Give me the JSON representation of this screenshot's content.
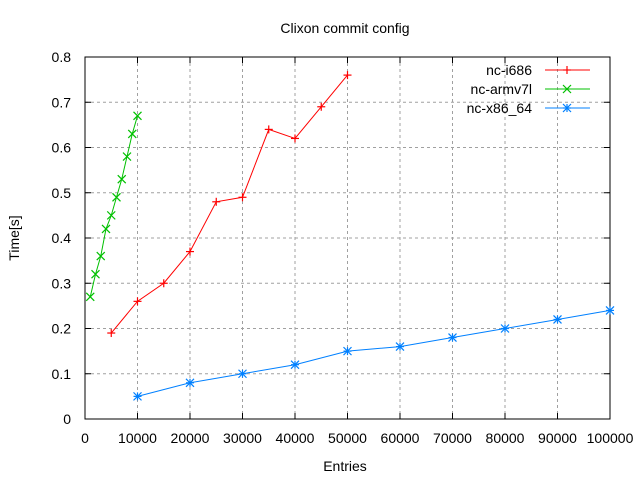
{
  "chart_data": {
    "type": "line",
    "title": "Clixon commit config",
    "xlabel": "Entries",
    "ylabel": "Time[s]",
    "xlim": [
      0,
      100000
    ],
    "ylim": [
      0,
      0.8
    ],
    "xticks": [
      0,
      10000,
      20000,
      30000,
      40000,
      50000,
      60000,
      70000,
      80000,
      90000,
      100000
    ],
    "yticks": [
      0,
      0.1,
      0.2,
      0.3,
      0.4,
      0.5,
      0.6,
      0.7,
      0.8
    ],
    "grid": true,
    "legend_position": "top-right",
    "series": [
      {
        "name": "nc-i686",
        "color": "#ff0000",
        "marker": "plus",
        "x": [
          5000,
          10000,
          15000,
          20000,
          25000,
          30000,
          35000,
          40000,
          45000,
          50000
        ],
        "y": [
          0.19,
          0.26,
          0.3,
          0.37,
          0.48,
          0.49,
          0.64,
          0.62,
          0.69,
          0.76
        ]
      },
      {
        "name": "nc-armv7l",
        "color": "#00c000",
        "marker": "cross",
        "x": [
          1000,
          2000,
          3000,
          4000,
          5000,
          6000,
          7000,
          8000,
          9000,
          10000
        ],
        "y": [
          0.27,
          0.32,
          0.36,
          0.42,
          0.45,
          0.49,
          0.53,
          0.58,
          0.63,
          0.67
        ]
      },
      {
        "name": "nc-x86_64",
        "color": "#0080ff",
        "marker": "star",
        "x": [
          10000,
          20000,
          30000,
          40000,
          50000,
          60000,
          70000,
          80000,
          90000,
          100000
        ],
        "y": [
          0.05,
          0.08,
          0.1,
          0.12,
          0.15,
          0.16,
          0.18,
          0.2,
          0.22,
          0.24
        ]
      }
    ]
  }
}
